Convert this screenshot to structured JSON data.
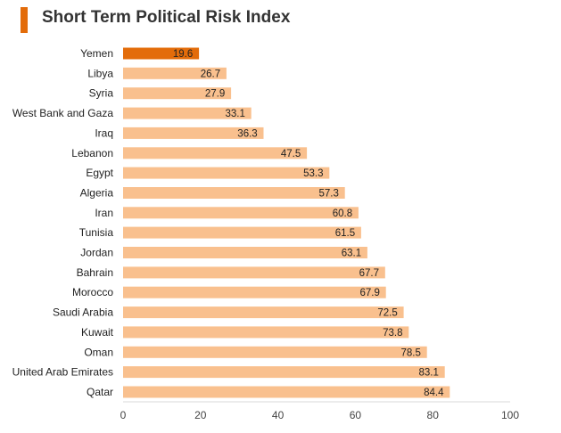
{
  "title": "Short Term Political Risk Index",
  "colors": {
    "accent": "#e36c0a",
    "highlight_bar": "#e36c0a",
    "bar": "#f9c08e",
    "highlight_label": "#ffffff",
    "label": "#222222"
  },
  "chart_data": {
    "type": "bar",
    "orientation": "horizontal",
    "title": "Short Term Political Risk Index",
    "xlabel": "",
    "ylabel": "",
    "xlim": [
      0,
      100
    ],
    "x_ticks": [
      "0",
      "20",
      "40",
      "60",
      "80",
      "100"
    ],
    "grid": false,
    "highlight_index": 0,
    "categories": [
      "Yemen",
      "Libya",
      "Syria",
      "West Bank and Gaza",
      "Iraq",
      "Lebanon",
      "Egypt",
      "Algeria",
      "Iran",
      "Tunisia",
      "Jordan",
      "Bahrain",
      "Morocco",
      "Saudi Arabia",
      "Kuwait",
      "Oman",
      "United Arab Emirates",
      "Qatar"
    ],
    "values": [
      19.6,
      26.7,
      27.9,
      33.1,
      36.3,
      47.5,
      53.3,
      57.3,
      60.8,
      61.5,
      63.1,
      67.7,
      67.9,
      72.5,
      73.8,
      78.5,
      83.1,
      84.4
    ],
    "value_labels": [
      "19.6",
      "26.7",
      "27.9",
      "33.1",
      "36.3",
      "47.5",
      "53.3",
      "57.3",
      "60.8",
      "61.5",
      "63.1",
      "67.7",
      "67.9",
      "72.5",
      "73.8",
      "78.5",
      "83.1",
      "84.4"
    ]
  }
}
